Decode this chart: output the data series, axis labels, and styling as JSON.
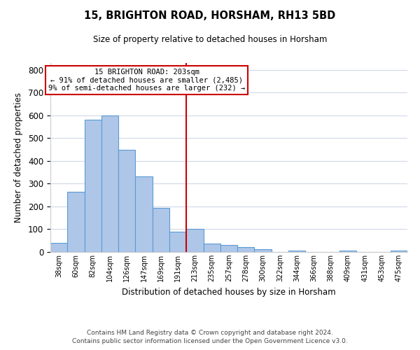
{
  "title": "15, BRIGHTON ROAD, HORSHAM, RH13 5BD",
  "subtitle": "Size of property relative to detached houses in Horsham",
  "xlabel": "Distribution of detached houses by size in Horsham",
  "ylabel": "Number of detached properties",
  "bar_labels": [
    "38sqm",
    "60sqm",
    "82sqm",
    "104sqm",
    "126sqm",
    "147sqm",
    "169sqm",
    "191sqm",
    "213sqm",
    "235sqm",
    "257sqm",
    "278sqm",
    "300sqm",
    "322sqm",
    "344sqm",
    "366sqm",
    "388sqm",
    "409sqm",
    "431sqm",
    "453sqm",
    "475sqm"
  ],
  "bar_values": [
    40,
    263,
    582,
    598,
    450,
    333,
    193,
    90,
    100,
    38,
    32,
    20,
    13,
    0,
    5,
    0,
    0,
    5,
    0,
    0,
    5
  ],
  "bar_color": "#aec6e8",
  "bar_edge_color": "#5b9bd5",
  "vline_x": 7.5,
  "vline_color": "#cc0000",
  "annotation_title": "15 BRIGHTON ROAD: 203sqm",
  "annotation_line1": "← 91% of detached houses are smaller (2,485)",
  "annotation_line2": "9% of semi-detached houses are larger (232) →",
  "annotation_box_color": "#ffffff",
  "annotation_box_edge": "#cc0000",
  "ylim": [
    0,
    830
  ],
  "yticks": [
    0,
    100,
    200,
    300,
    400,
    500,
    600,
    700,
    800
  ],
  "footnote1": "Contains HM Land Registry data © Crown copyright and database right 2024.",
  "footnote2": "Contains public sector information licensed under the Open Government Licence v3.0.",
  "bg_color": "#ffffff",
  "grid_color": "#d0d8e8"
}
